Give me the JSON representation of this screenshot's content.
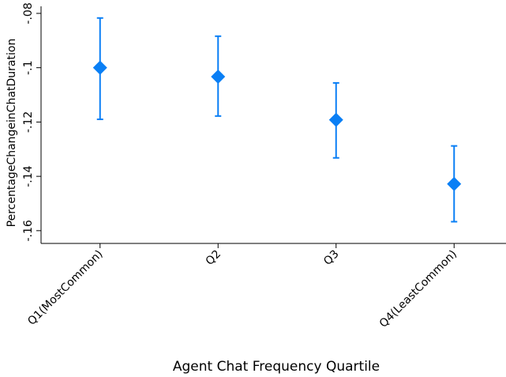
{
  "chart_data": {
    "type": "errorbar",
    "x_label": "Agent Chat Frequency Quartile",
    "y_label": "PercentageChangeinChatDuration",
    "categories": [
      "Q1(MostCommon)",
      "Q2",
      "Q3",
      "Q4(LeastCommon)"
    ],
    "values": [
      -0.1,
      -0.1033,
      -0.1192,
      -0.1428
    ],
    "lower": [
      -0.119,
      -0.1178,
      -0.1332,
      -0.1567
    ],
    "upper": [
      -0.0817,
      -0.0884,
      -0.1056,
      -0.1288
    ],
    "color": "#0a7ff5",
    "ylim": [
      -0.1647,
      -0.0774
    ],
    "yticks": [
      {
        "value": -0.16,
        "label": "-.16"
      },
      {
        "value": -0.14,
        "label": "-.14"
      },
      {
        "value": -0.12,
        "label": "-.12"
      },
      {
        "value": -0.1,
        "label": "-.1"
      },
      {
        "value": -0.08,
        "label": "-.08"
      }
    ]
  }
}
